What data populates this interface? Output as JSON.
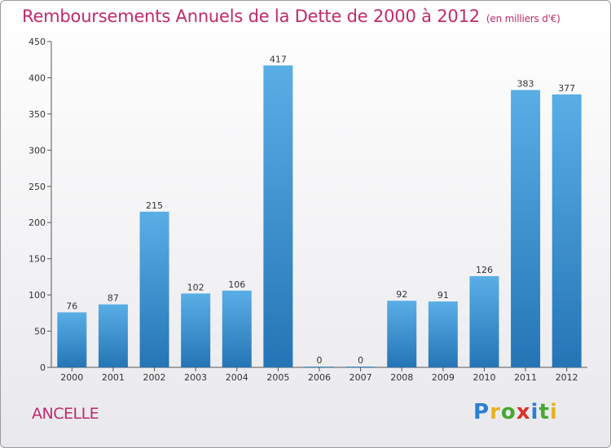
{
  "header": {
    "title": "Remboursements Annuels de la Dette de 2000 à 2012",
    "unit": "(en milliers d'€)"
  },
  "footer": {
    "place": "ANCELLE",
    "logo": "Proxiti"
  },
  "colors": {
    "title": "#c02a6b",
    "bar_top": "#5aaee6",
    "bar_bottom": "#2575b6"
  },
  "chart_data": {
    "type": "bar",
    "categories": [
      "2000",
      "2001",
      "2002",
      "2003",
      "2004",
      "2005",
      "2006",
      "2007",
      "2008",
      "2009",
      "2010",
      "2011",
      "2012"
    ],
    "values": [
      76,
      87,
      215,
      102,
      106,
      417,
      0,
      0,
      92,
      91,
      126,
      383,
      377
    ],
    "ylim": [
      0,
      450
    ],
    "yticks": [
      0,
      50,
      100,
      150,
      200,
      250,
      300,
      350,
      400,
      450
    ],
    "grid": false,
    "legend": "none"
  }
}
